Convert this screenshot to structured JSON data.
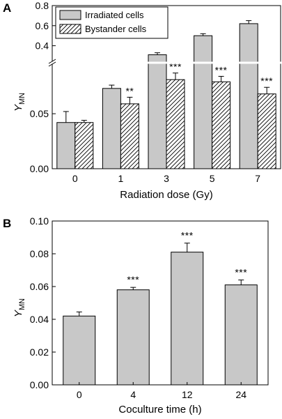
{
  "colors": {
    "bar_fill": "#c8c8c8",
    "outline": "#000000",
    "background": "#ffffff"
  },
  "chart_data": [
    {
      "panel": "A",
      "type": "bar",
      "xlabel": "Radiation dose (Gy)",
      "ylabel_main": "Y",
      "ylabel_sub": "MN",
      "categories": [
        "0",
        "1",
        "3",
        "5",
        "7"
      ],
      "broken_axis": true,
      "ylim_lower": [
        0,
        0.09
      ],
      "ylim_upper": [
        0.3,
        0.8
      ],
      "yticks_lower": [
        "0.00",
        "0.05"
      ],
      "yticks_upper": [
        "0.4",
        "0.6",
        "0.8"
      ],
      "legend_position": "top-left",
      "series": [
        {
          "name": "Irradiated cells",
          "pattern": "solid",
          "values": [
            0.042,
            0.073,
            0.31,
            0.5,
            0.62
          ],
          "errors": [
            0.01,
            0.003,
            0.02,
            0.02,
            0.03
          ]
        },
        {
          "name": "Bystander cells",
          "pattern": "hatched",
          "values": [
            0.042,
            0.059,
            0.081,
            0.079,
            0.068
          ],
          "errors": [
            0.002,
            0.006,
            0.006,
            0.005,
            0.006
          ],
          "significance": [
            "",
            "**",
            "***",
            "***",
            "***"
          ]
        }
      ]
    },
    {
      "panel": "B",
      "type": "bar",
      "xlabel": "Coculture time (h)",
      "ylabel_main": "Y",
      "ylabel_sub": "MN",
      "categories": [
        "0",
        "4",
        "12",
        "24"
      ],
      "ylim": [
        0,
        0.1
      ],
      "yticks": [
        "0.00",
        "0.02",
        "0.04",
        "0.06",
        "0.08",
        "0.10"
      ],
      "series": [
        {
          "pattern": "solid",
          "values": [
            0.042,
            0.058,
            0.081,
            0.061
          ],
          "errors": [
            0.0025,
            0.0015,
            0.0055,
            0.003
          ],
          "significance": [
            "",
            "***",
            "***",
            "***"
          ]
        }
      ]
    }
  ]
}
